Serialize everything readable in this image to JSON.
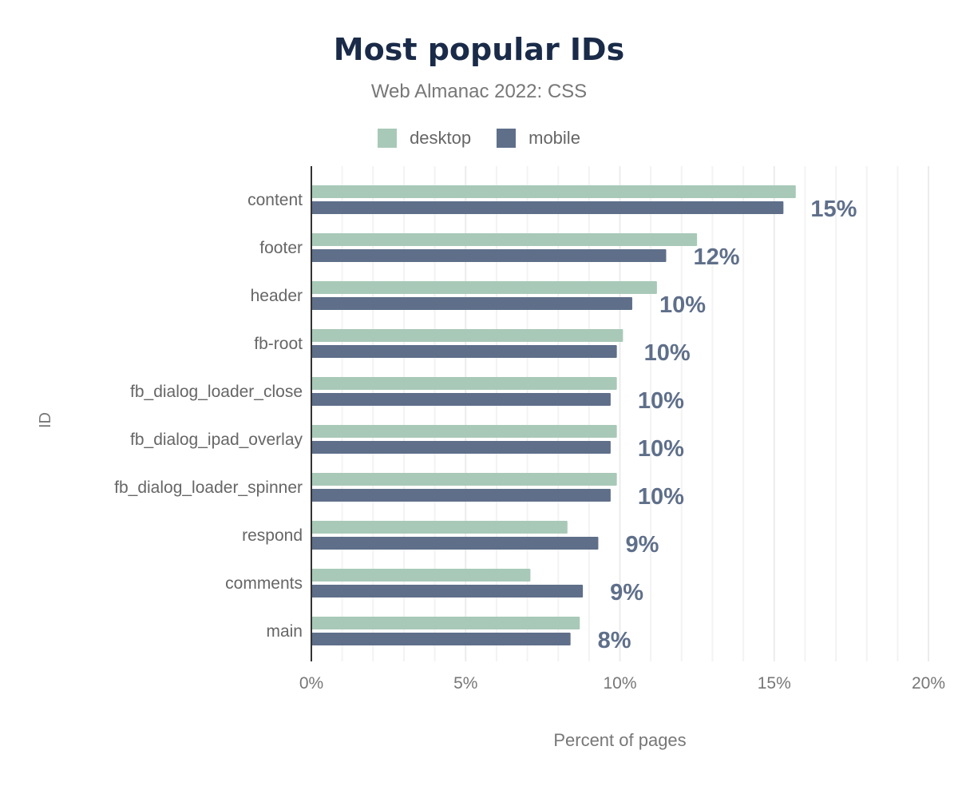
{
  "chart_data": {
    "type": "bar",
    "orientation": "horizontal",
    "title": "Most popular IDs",
    "subtitle": "Web Almanac 2022: CSS",
    "xlabel": "Percent of pages",
    "ylabel": "ID",
    "xlim": [
      0,
      20
    ],
    "xticks": [
      "0%",
      "5%",
      "10%",
      "15%",
      "20%"
    ],
    "grid": true,
    "legend_position": "top",
    "categories": [
      "content",
      "footer",
      "header",
      "fb-root",
      "fb_dialog_loader_close",
      "fb_dialog_ipad_overlay",
      "fb_dialog_loader_spinner",
      "respond",
      "comments",
      "main"
    ],
    "series": [
      {
        "name": "desktop",
        "color": "#a8c9b8",
        "values": [
          15.7,
          12.5,
          11.2,
          10.1,
          9.9,
          9.9,
          9.9,
          8.3,
          7.1,
          8.7
        ]
      },
      {
        "name": "mobile",
        "color": "#5f6f8a",
        "values": [
          15.3,
          11.5,
          10.4,
          9.9,
          9.7,
          9.7,
          9.7,
          9.3,
          8.8,
          8.4
        ]
      }
    ],
    "data_labels": [
      "15%",
      "12%",
      "10%",
      "10%",
      "10%",
      "10%",
      "10%",
      "9%",
      "9%",
      "8%"
    ]
  }
}
